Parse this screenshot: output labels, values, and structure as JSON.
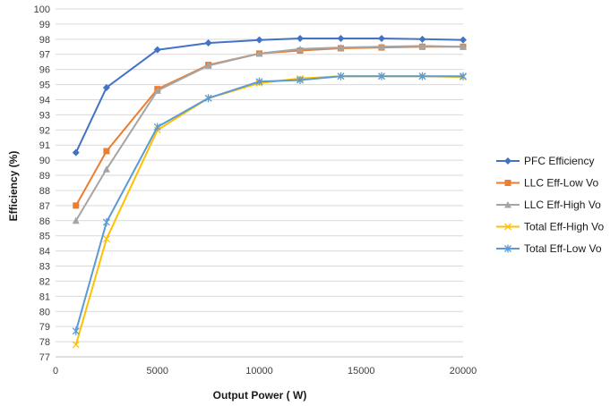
{
  "chart_data": {
    "type": "line",
    "xlabel": "Output Power ( W)",
    "ylabel": "Efficiency (%)",
    "xlim": [
      0,
      20000
    ],
    "ylim": [
      77,
      100
    ],
    "x_ticks": [
      0,
      5000,
      10000,
      15000,
      20000
    ],
    "y_ticks": [
      77,
      78,
      79,
      80,
      81,
      82,
      83,
      84,
      85,
      86,
      87,
      88,
      89,
      90,
      91,
      92,
      93,
      94,
      95,
      96,
      97,
      98,
      99,
      100
    ],
    "grid": "horizontal",
    "legend_position": "right",
    "x": [
      1000,
      2500,
      5000,
      7500,
      10000,
      12000,
      14000,
      16000,
      18000,
      20000
    ],
    "series": [
      {
        "name": "PFC Efficiency",
        "color": "#4472C4",
        "marker": "diamond",
        "values": [
          90.5,
          94.8,
          97.3,
          97.75,
          97.95,
          98.05,
          98.05,
          98.05,
          98.0,
          97.95
        ]
      },
      {
        "name": "LLC Eff-Low Vo",
        "color": "#ED7D31",
        "marker": "square",
        "values": [
          87.0,
          90.6,
          94.7,
          96.3,
          97.05,
          97.25,
          97.4,
          97.45,
          97.5,
          97.5
        ]
      },
      {
        "name": "LLC Eff-High Vo",
        "color": "#A5A5A5",
        "marker": "triangle",
        "values": [
          86.0,
          89.4,
          94.6,
          96.25,
          97.05,
          97.35,
          97.45,
          97.5,
          97.55,
          97.5
        ]
      },
      {
        "name": "Total Eff-High Vo",
        "color": "#FFC000",
        "marker": "x",
        "values": [
          77.8,
          84.8,
          92.0,
          94.1,
          95.1,
          95.4,
          95.55,
          95.55,
          95.55,
          95.5
        ]
      },
      {
        "name": "Total Eff-Low Vo",
        "color": "#5B9BD5",
        "marker": "star",
        "values": [
          78.7,
          85.9,
          92.2,
          94.1,
          95.2,
          95.3,
          95.55,
          95.55,
          95.55,
          95.55
        ]
      }
    ]
  }
}
